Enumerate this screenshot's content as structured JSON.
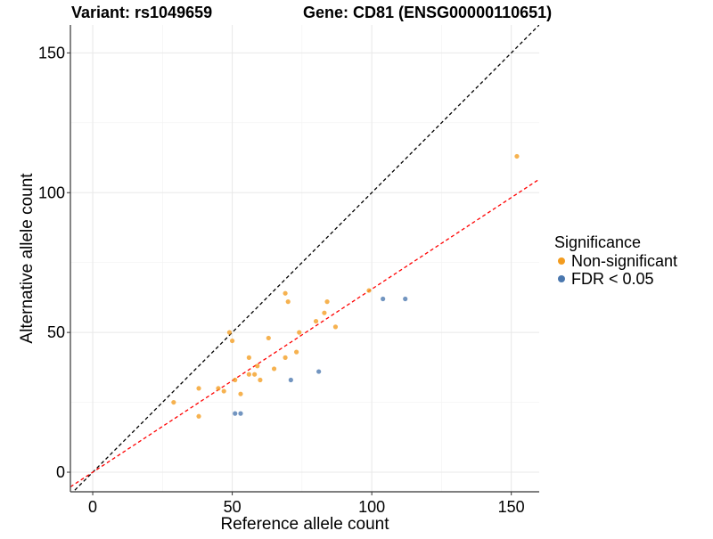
{
  "chart_data": {
    "type": "scatter",
    "title_left": "Variant: rs1049659",
    "title_right": "Gene: CD81 (ENSG00000110651)",
    "xlabel": "Reference allele count",
    "ylabel": "Alternative allele count",
    "xlim": [
      -8,
      160
    ],
    "ylim": [
      -7,
      160
    ],
    "xticks": [
      0,
      50,
      100,
      150
    ],
    "yticks": [
      0,
      50,
      100,
      150
    ],
    "grid": true,
    "legend": {
      "title": "Significance",
      "position": "right",
      "items": [
        {
          "label": "Non-significant",
          "color": "#F39C1F"
        },
        {
          "label": "FDR < 0.05",
          "color": "#4A77AE"
        }
      ]
    },
    "series": [
      {
        "name": "Non-significant",
        "color": "#F39C1F",
        "points": [
          [
            29,
            25
          ],
          [
            38,
            30
          ],
          [
            38,
            20
          ],
          [
            45,
            30
          ],
          [
            47,
            29
          ],
          [
            49,
            50
          ],
          [
            50,
            47
          ],
          [
            51,
            33
          ],
          [
            53,
            28
          ],
          [
            56,
            35
          ],
          [
            56,
            41
          ],
          [
            58,
            35
          ],
          [
            59,
            38
          ],
          [
            60,
            33
          ],
          [
            63,
            48
          ],
          [
            65,
            37
          ],
          [
            69,
            64
          ],
          [
            69,
            41
          ],
          [
            70,
            61
          ],
          [
            73,
            43
          ],
          [
            74,
            50
          ],
          [
            80,
            54
          ],
          [
            83,
            57
          ],
          [
            84,
            61
          ],
          [
            87,
            52
          ],
          [
            99,
            65
          ],
          [
            152,
            113
          ]
        ]
      },
      {
        "name": "FDR < 0.05",
        "color": "#4A77AE",
        "points": [
          [
            51,
            21
          ],
          [
            53,
            21
          ],
          [
            71,
            33
          ],
          [
            81,
            36
          ],
          [
            104,
            62
          ],
          [
            112,
            62
          ]
        ]
      }
    ],
    "reference_lines": [
      {
        "label": "y = x",
        "color": "#000000",
        "slope": 1,
        "intercept": 0
      },
      {
        "label": "fit",
        "color": "#FF0000",
        "slope": 0.655,
        "intercept": 0
      }
    ]
  }
}
